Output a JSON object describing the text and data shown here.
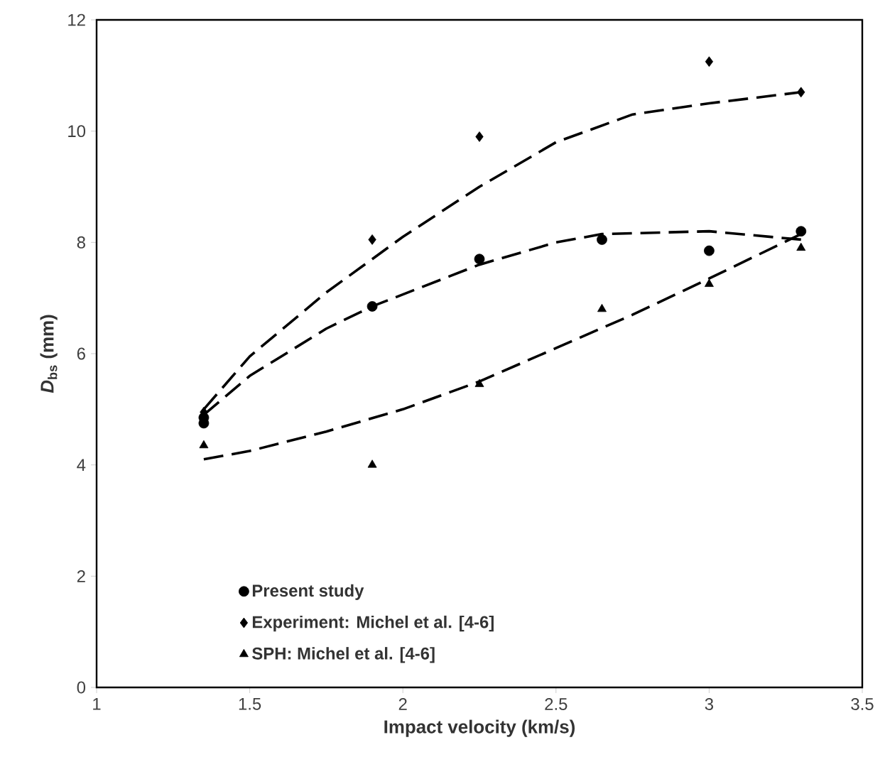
{
  "chart_data": {
    "type": "scatter",
    "xlabel": "Impact velocity (km/s)",
    "ylabel": "*D*$_{bs}$ (mm)",
    "xlim": [
      1,
      3.5
    ],
    "xticks": [
      1,
      1.5,
      2,
      2.5,
      3,
      3.5
    ],
    "ylim": [
      0,
      12
    ],
    "yticks": [
      0,
      2,
      4,
      6,
      8,
      10,
      12
    ],
    "grid": false,
    "legend": "bottom",
    "series": [
      {
        "name": "Present study",
        "color": "#000000",
        "marker": "circle",
        "x": [
          1.35,
          1.35,
          1.9,
          2.25,
          2.65,
          3.0,
          3.3
        ],
        "values": [
          4.75,
          4.85,
          6.85,
          7.7,
          8.05,
          7.85,
          8.2
        ]
      },
      {
        "name": "Experiment: Michel et al. [4-6]",
        "color": "#000000",
        "marker": "diamond",
        "x": [
          1.35,
          1.9,
          2.25,
          3.0,
          3.3
        ],
        "values": [
          4.95,
          8.05,
          9.9,
          11.25,
          10.7
        ]
      },
      {
        "name": "SPH: Michel et al. [4-6]",
        "color": "#000000",
        "marker": "triangle",
        "x": [
          1.35,
          1.9,
          2.25,
          2.65,
          3.0,
          3.3
        ],
        "values": [
          4.35,
          4.0,
          5.45,
          6.8,
          7.25,
          7.9
        ]
      },
      {
        "type": "line",
        "color": "#000000",
        "marker": "none",
        "line_style": "dashed",
        "x": [
          1.35,
          1.5,
          1.75,
          2.0,
          2.25,
          2.5,
          2.75,
          3.0,
          3.3
        ],
        "values": [
          5.0,
          5.95,
          7.1,
          8.1,
          9.0,
          9.8,
          10.3,
          10.5,
          10.7
        ]
      },
      {
        "type": "line",
        "color": "#000000",
        "marker": "none",
        "line_style": "dashed",
        "x": [
          1.35,
          1.5,
          1.75,
          1.9,
          2.25,
          2.5,
          2.65,
          3.0,
          3.3
        ],
        "values": [
          4.9,
          5.6,
          6.45,
          6.85,
          7.6,
          8.0,
          8.15,
          8.2,
          8.05
        ]
      },
      {
        "type": "line",
        "color": "#000000",
        "marker": "none",
        "line_style": "dashed",
        "x": [
          1.35,
          1.5,
          1.75,
          2.0,
          2.25,
          2.5,
          2.75,
          3.0,
          3.3
        ],
        "values": [
          4.1,
          4.25,
          4.6,
          5.0,
          5.5,
          6.1,
          6.7,
          7.35,
          8.15
        ]
      }
    ]
  }
}
